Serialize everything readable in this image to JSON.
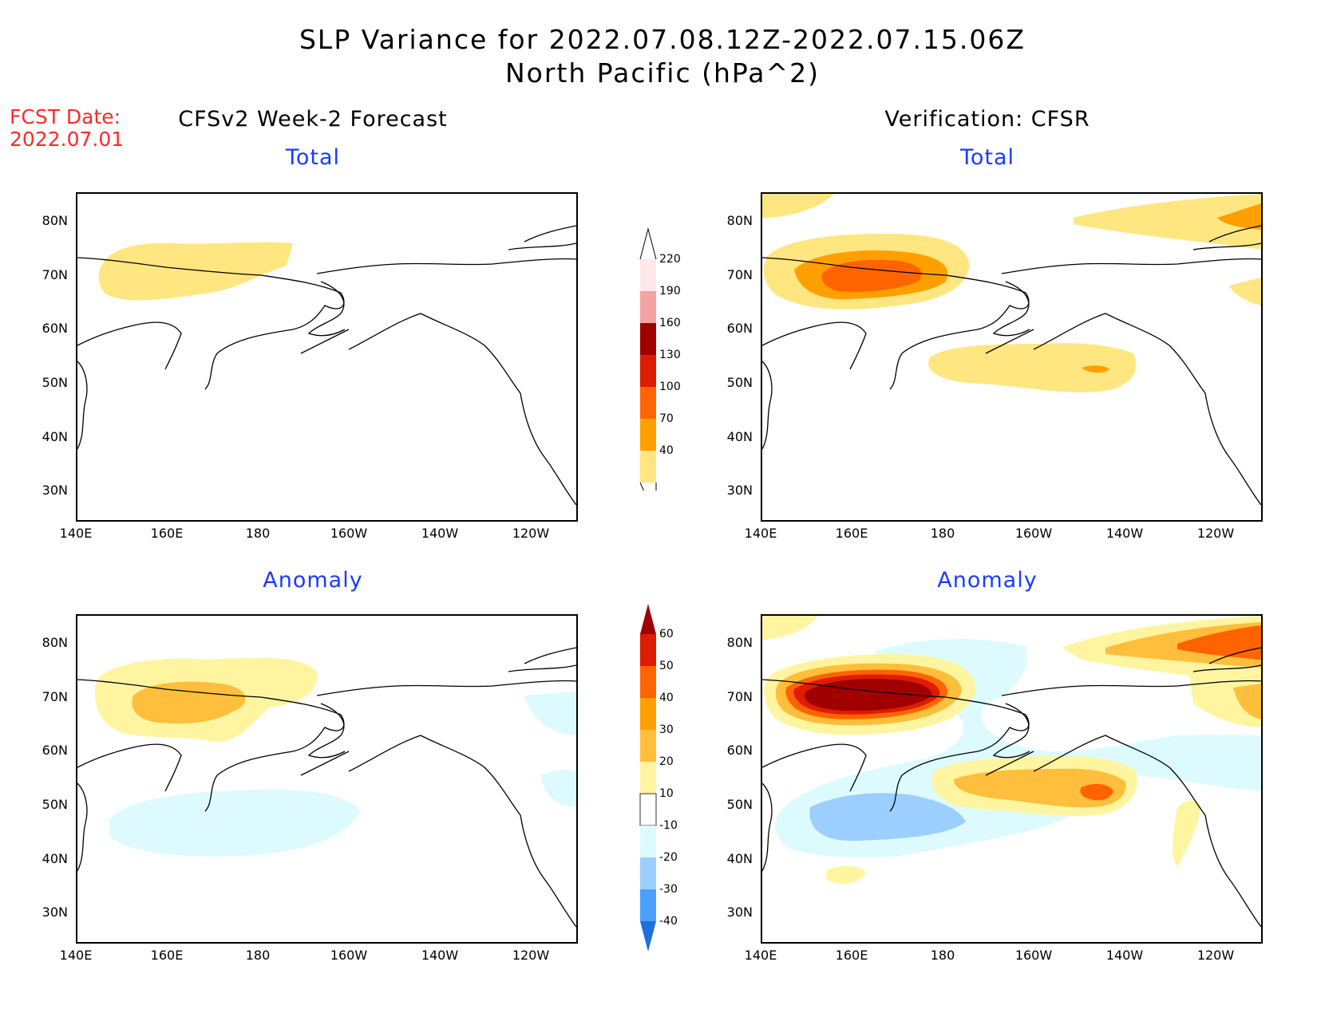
{
  "header": {
    "title_line1": "SLP Variance for 2022.07.08.12Z-2022.07.15.06Z",
    "title_line2": "North Pacific (hPa^2)",
    "fcst_label": "FCST Date:",
    "fcst_date": "2022.07.01"
  },
  "columns": {
    "left": "CFSv2 Week-2 Forecast",
    "right": "Verification: CFSR"
  },
  "panel_titles": {
    "total": "Total",
    "anomaly": "Anomaly"
  },
  "axes": {
    "lat_ticks": [
      "80N",
      "70N",
      "60N",
      "50N",
      "40N",
      "30N"
    ],
    "lon_ticks": [
      "140E",
      "160E",
      "180",
      "160W",
      "140W",
      "120W"
    ]
  },
  "colorbar_total": {
    "labels": [
      "220",
      "190",
      "160",
      "130",
      "100",
      "70",
      "40"
    ],
    "colors": [
      "#ffe8e8",
      "#f3a3a3",
      "#a00000",
      "#dd1c00",
      "#ff6400",
      "#ffa000",
      "#ffe680"
    ]
  },
  "colorbar_anomaly": {
    "labels": [
      "60",
      "50",
      "40",
      "30",
      "20",
      "10",
      "-10",
      "-20",
      "-30",
      "-40"
    ],
    "colors": [
      "#a00000",
      "#dd1c00",
      "#ff6400",
      "#ffa000",
      "#ffbe3c",
      "#fff5a0",
      "#ffffff",
      "#ddfbff",
      "#9ccfff",
      "#4aa0ff",
      "#1e6ee0"
    ]
  },
  "fill_colors": {
    "yellow": "#ffe680",
    "orange": "#ffa000",
    "darkorange": "#ff6400",
    "lightyellow": "#fff5a0",
    "amber": "#ffbe3c",
    "red": "#dd1c00",
    "darkred": "#a00000",
    "lightblue": "#ddfbff",
    "blue": "#9ccfff"
  }
}
